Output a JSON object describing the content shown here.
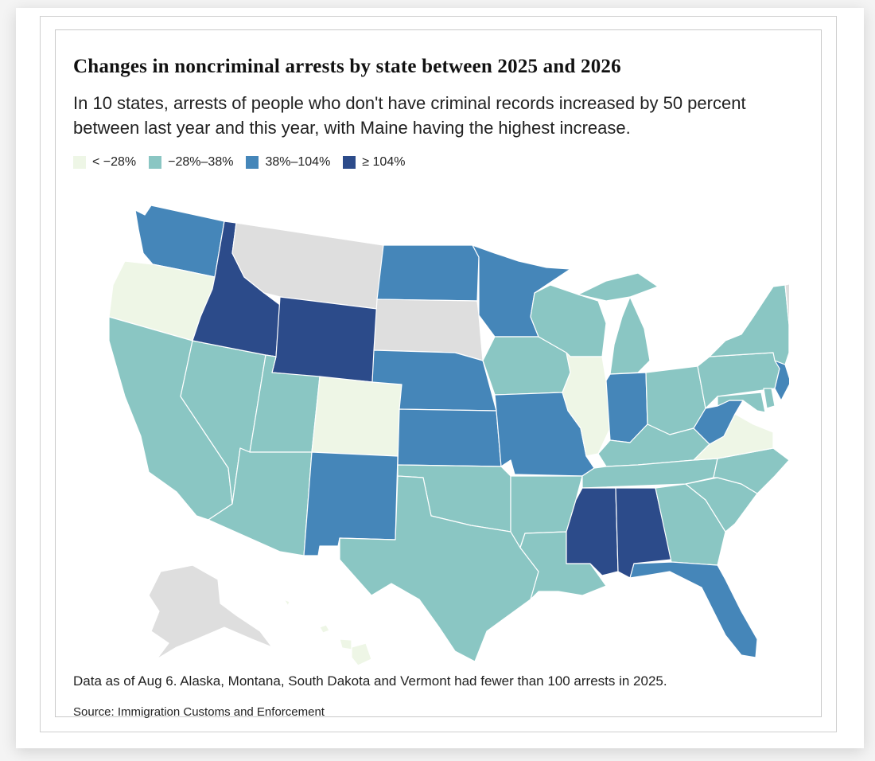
{
  "title": "Changes in noncriminal arrests by state between 2025 and 2026",
  "subtitle": "In 10 states, arrests of people who don't have criminal records increased by 50 percent between last year and this year, with Maine having the highest increase.",
  "legend": [
    {
      "label": "<  −28%",
      "bin": "b1"
    },
    {
      "label": "−28%–38%",
      "bin": "b2"
    },
    {
      "label": "38%–104%",
      "bin": "b3"
    },
    {
      "label": "≥  104%",
      "bin": "b4"
    }
  ],
  "colors": {
    "b1": "#eef6e6",
    "b2": "#8ac6c3",
    "b3": "#4586b9",
    "b4": "#2c4b8a",
    "nodata": "#dedede"
  },
  "states": {
    "WA": "b3",
    "OR": "b1",
    "CA": "b2",
    "ID": "b4",
    "NV": "b2",
    "MT": "nodata",
    "WY": "b4",
    "UT": "b2",
    "AZ": "b2",
    "CO": "b1",
    "NM": "b3",
    "ND": "b3",
    "SD": "nodata",
    "NE": "b3",
    "KS": "b3",
    "OK": "b2",
    "TX": "b2",
    "MN": "b3",
    "IA": "b2",
    "MO": "b3",
    "AR": "b2",
    "LA": "b2",
    "WI": "b2",
    "IL": "b1",
    "MI": "b2",
    "IN": "b3",
    "OH": "b2",
    "KY": "b2",
    "TN": "b2",
    "MS": "b4",
    "AL": "b4",
    "GA": "b2",
    "FL": "b3",
    "SC": "b2",
    "NC": "b2",
    "VA": "b1",
    "WV": "b3",
    "PA": "b2",
    "NY": "b2",
    "VT": "nodata",
    "NH": "b3",
    "ME": "b4",
    "MA": "b2",
    "CT": "b2",
    "RI": "b2",
    "NJ": "b3",
    "DE": "b2",
    "MD": "b2",
    "AK": "nodata",
    "HI": "b1"
  },
  "footnote": "Data as of Aug 6. Alaska, Montana, South Dakota and Vermont had fewer than 100 arrests in 2025.",
  "source": "Source: Immigration Customs and Enforcement"
}
